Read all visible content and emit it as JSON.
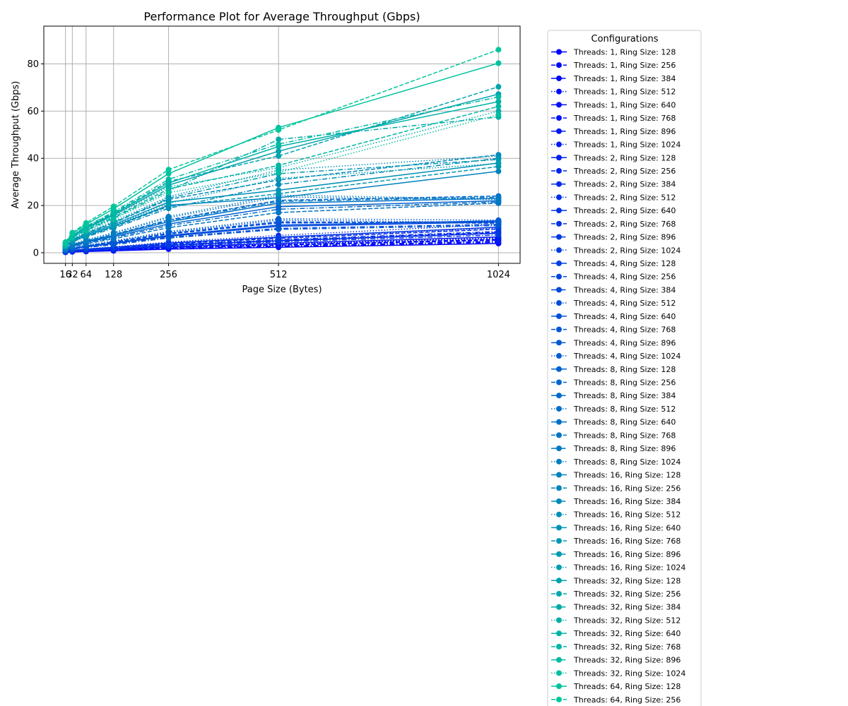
{
  "chart_data": {
    "type": "line",
    "title": "Performance Plot for Average Throughput (Gbps)",
    "xlabel": "Page Size (Bytes)",
    "ylabel": "Average Throughput (Gbps)",
    "x": [
      16,
      32,
      64,
      128,
      256,
      512,
      1024
    ],
    "x_ticks": [
      16,
      32,
      64,
      128,
      256,
      512,
      1024
    ],
    "x_tick_labels": [
      "16",
      "32",
      "64",
      "128",
      "256",
      "512",
      "1024"
    ],
    "xlim": [
      -34.4,
      1074.4
    ],
    "y_ticks": [
      0,
      20,
      40,
      60,
      80
    ],
    "ylim": [
      -4.5,
      96
    ],
    "grid": true,
    "legend": {
      "title": "Configurations",
      "placement": "outside-right"
    },
    "color_start": "#0000ff",
    "color_end": "#00ff80",
    "line_styles": [
      "solid",
      "dashed",
      "dashdot",
      "dotted"
    ],
    "series": [
      {
        "name": "Threads: 1, Ring Size: 128",
        "values": [
          0.2,
          0.4,
          0.5,
          0.8,
          1.5,
          2.3,
          3.9
        ]
      },
      {
        "name": "Threads: 1, Ring Size: 256",
        "values": [
          0.3,
          0.5,
          0.7,
          1.1,
          2.0,
          3.2,
          5.3
        ]
      },
      {
        "name": "Threads: 1, Ring Size: 384",
        "values": [
          0.2,
          0.4,
          0.6,
          0.9,
          1.7,
          2.6,
          4.4
        ]
      },
      {
        "name": "Threads: 1, Ring Size: 512",
        "values": [
          0.3,
          0.5,
          0.8,
          1.2,
          2.2,
          3.5,
          6.0
        ]
      },
      {
        "name": "Threads: 1, Ring Size: 640",
        "values": [
          0.3,
          0.6,
          0.9,
          1.4,
          2.5,
          4.0,
          6.7
        ]
      },
      {
        "name": "Threads: 1, Ring Size: 768",
        "values": [
          0.3,
          0.5,
          0.8,
          1.2,
          2.1,
          3.4,
          5.7
        ]
      },
      {
        "name": "Threads: 1, Ring Size: 896",
        "values": [
          0.2,
          0.4,
          0.6,
          1.0,
          1.8,
          2.8,
          4.8
        ]
      },
      {
        "name": "Threads: 1, Ring Size: 1024",
        "values": [
          0.3,
          0.6,
          0.9,
          1.3,
          2.4,
          3.8,
          6.3
        ]
      },
      {
        "name": "Threads: 2, Ring Size: 128",
        "values": [
          0.4,
          0.7,
          1.1,
          1.7,
          3.1,
          5.0,
          8.2
        ]
      },
      {
        "name": "Threads: 2, Ring Size: 256",
        "values": [
          0.5,
          0.9,
          1.4,
          2.1,
          3.8,
          6.1,
          10.0
        ]
      },
      {
        "name": "Threads: 2, Ring Size: 384",
        "values": [
          0.4,
          0.8,
          1.2,
          1.9,
          3.4,
          5.5,
          9.0
        ]
      },
      {
        "name": "Threads: 2, Ring Size: 512",
        "values": [
          0.6,
          1.1,
          1.6,
          2.5,
          4.5,
          7.3,
          12.0
        ]
      },
      {
        "name": "Threads: 2, Ring Size: 640",
        "values": [
          0.5,
          1.0,
          1.5,
          2.3,
          4.1,
          6.6,
          10.8
        ]
      },
      {
        "name": "Threads: 2, Ring Size: 768",
        "values": [
          0.4,
          0.8,
          1.2,
          1.8,
          3.3,
          5.2,
          8.6
        ]
      },
      {
        "name": "Threads: 2, Ring Size: 896",
        "values": [
          0.4,
          0.7,
          1.0,
          1.6,
          2.9,
          4.6,
          7.5
        ]
      },
      {
        "name": "Threads: 2, Ring Size: 1024",
        "values": [
          0.5,
          1.0,
          1.4,
          2.2,
          4.0,
          6.4,
          10.5
        ]
      },
      {
        "name": "Threads: 4, Ring Size: 128",
        "values": [
          0.9,
          1.7,
          2.5,
          3.9,
          7.0,
          11.2,
          13.0
        ]
      },
      {
        "name": "Threads: 4, Ring Size: 256",
        "values": [
          1.0,
          1.9,
          2.8,
          4.4,
          7.9,
          12.6,
          13.2
        ]
      },
      {
        "name": "Threads: 4, Ring Size: 384",
        "values": [
          0.8,
          1.6,
          2.3,
          3.6,
          6.5,
          10.3,
          12.0
        ]
      },
      {
        "name": "Threads: 4, Ring Size: 512",
        "values": [
          1.1,
          2.1,
          3.1,
          4.8,
          8.6,
          13.8,
          12.8
        ]
      },
      {
        "name": "Threads: 4, Ring Size: 640",
        "values": [
          0.9,
          1.8,
          2.6,
          4.1,
          7.3,
          11.7,
          13.5
        ]
      },
      {
        "name": "Threads: 4, Ring Size: 768",
        "values": [
          1.0,
          2.0,
          2.9,
          4.6,
          8.2,
          13.1,
          12.5
        ]
      },
      {
        "name": "Threads: 4, Ring Size: 896",
        "values": [
          0.8,
          1.5,
          2.2,
          3.4,
          6.2,
          9.9,
          11.5
        ]
      },
      {
        "name": "Threads: 4, Ring Size: 1024",
        "values": [
          1.1,
          2.2,
          3.2,
          5.0,
          9.0,
          14.4,
          13.8
        ]
      },
      {
        "name": "Threads: 8, Ring Size: 128",
        "values": [
          1.6,
          3.0,
          4.4,
          6.8,
          12.2,
          19.5,
          22.0
        ]
      },
      {
        "name": "Threads: 8, Ring Size: 256",
        "values": [
          1.8,
          3.4,
          5.0,
          7.7,
          13.9,
          22.2,
          24.0
        ]
      },
      {
        "name": "Threads: 8, Ring Size: 384",
        "values": [
          1.5,
          2.8,
          4.1,
          6.4,
          11.5,
          18.4,
          21.5
        ]
      },
      {
        "name": "Threads: 8, Ring Size: 512",
        "values": [
          1.9,
          3.6,
          5.3,
          8.2,
          14.8,
          23.6,
          22.5
        ]
      },
      {
        "name": "Threads: 8, Ring Size: 640",
        "values": [
          1.7,
          3.2,
          4.7,
          7.3,
          13.1,
          21.0,
          23.0
        ]
      },
      {
        "name": "Threads: 8, Ring Size: 768",
        "values": [
          1.4,
          2.6,
          3.8,
          5.9,
          10.6,
          17.0,
          21.0
        ]
      },
      {
        "name": "Threads: 8, Ring Size: 896",
        "values": [
          1.8,
          3.3,
          4.9,
          7.5,
          13.6,
          21.7,
          23.5
        ]
      },
      {
        "name": "Threads: 8, Ring Size: 1024",
        "values": [
          2.0,
          3.7,
          5.5,
          8.5,
          15.3,
          24.4,
          22.8
        ]
      },
      {
        "name": "Threads: 16, Ring Size: 128",
        "values": [
          2.6,
          4.9,
          7.2,
          11.2,
          20.1,
          23.3,
          34.5
        ]
      },
      {
        "name": "Threads: 16, Ring Size: 256",
        "values": [
          2.9,
          5.5,
          8.1,
          12.6,
          22.6,
          30.8,
          41.5
        ]
      },
      {
        "name": "Threads: 16, Ring Size: 384",
        "values": [
          2.4,
          4.6,
          6.7,
          10.4,
          18.8,
          28.9,
          40.0
        ]
      },
      {
        "name": "Threads: 16, Ring Size: 512",
        "values": [
          3.1,
          5.8,
          8.5,
          13.2,
          23.8,
          35.0,
          41.0
        ]
      },
      {
        "name": "Threads: 16, Ring Size: 640",
        "values": [
          2.8,
          5.2,
          7.7,
          11.9,
          21.5,
          26.5,
          38.0
        ]
      },
      {
        "name": "Threads: 16, Ring Size: 768",
        "values": [
          2.5,
          4.8,
          7.0,
          10.9,
          19.6,
          25.0,
          36.5
        ]
      },
      {
        "name": "Threads: 16, Ring Size: 896",
        "values": [
          3.0,
          5.6,
          8.3,
          12.8,
          23.1,
          33.5,
          39.5
        ]
      },
      {
        "name": "Threads: 16, Ring Size: 1024",
        "values": [
          2.7,
          5.1,
          7.5,
          11.6,
          20.9,
          31.5,
          37.8
        ]
      },
      {
        "name": "Threads: 32, Ring Size: 128",
        "values": [
          3.7,
          7.0,
          10.3,
          15.9,
          28.6,
          43.0,
          67.2
        ]
      },
      {
        "name": "Threads: 32, Ring Size: 256",
        "values": [
          3.9,
          7.4,
          10.9,
          16.8,
          30.2,
          41.0,
          70.3
        ]
      },
      {
        "name": "Threads: 32, Ring Size: 384",
        "values": [
          3.4,
          6.4,
          9.4,
          14.6,
          26.2,
          48.0,
          57.5
        ]
      },
      {
        "name": "Threads: 32, Ring Size: 512",
        "values": [
          3.6,
          6.8,
          10.0,
          15.5,
          27.9,
          36.0,
          60.0
        ]
      },
      {
        "name": "Threads: 32, Ring Size: 640",
        "values": [
          3.8,
          7.2,
          10.6,
          16.4,
          29.5,
          45.0,
          64.0
        ]
      },
      {
        "name": "Threads: 32, Ring Size: 768",
        "values": [
          3.5,
          6.6,
          9.7,
          15.0,
          27.0,
          37.0,
          62.0
        ]
      },
      {
        "name": "Threads: 32, Ring Size: 896",
        "values": [
          4.0,
          7.6,
          11.2,
          17.3,
          31.1,
          46.0,
          66.0
        ]
      },
      {
        "name": "Threads: 32, Ring Size: 1024",
        "values": [
          3.3,
          6.2,
          9.1,
          14.1,
          25.4,
          34.0,
          58.5
        ]
      },
      {
        "name": "Threads: 64, Ring Size: 128",
        "values": [
          4.3,
          8.1,
          12.0,
          18.6,
          33.5,
          53.0,
          80.3
        ]
      },
      {
        "name": "Threads: 64, Ring Size: 256",
        "values": [
          4.5,
          8.5,
          12.6,
          19.6,
          35.2,
          52.0,
          86.0
        ]
      }
    ]
  }
}
